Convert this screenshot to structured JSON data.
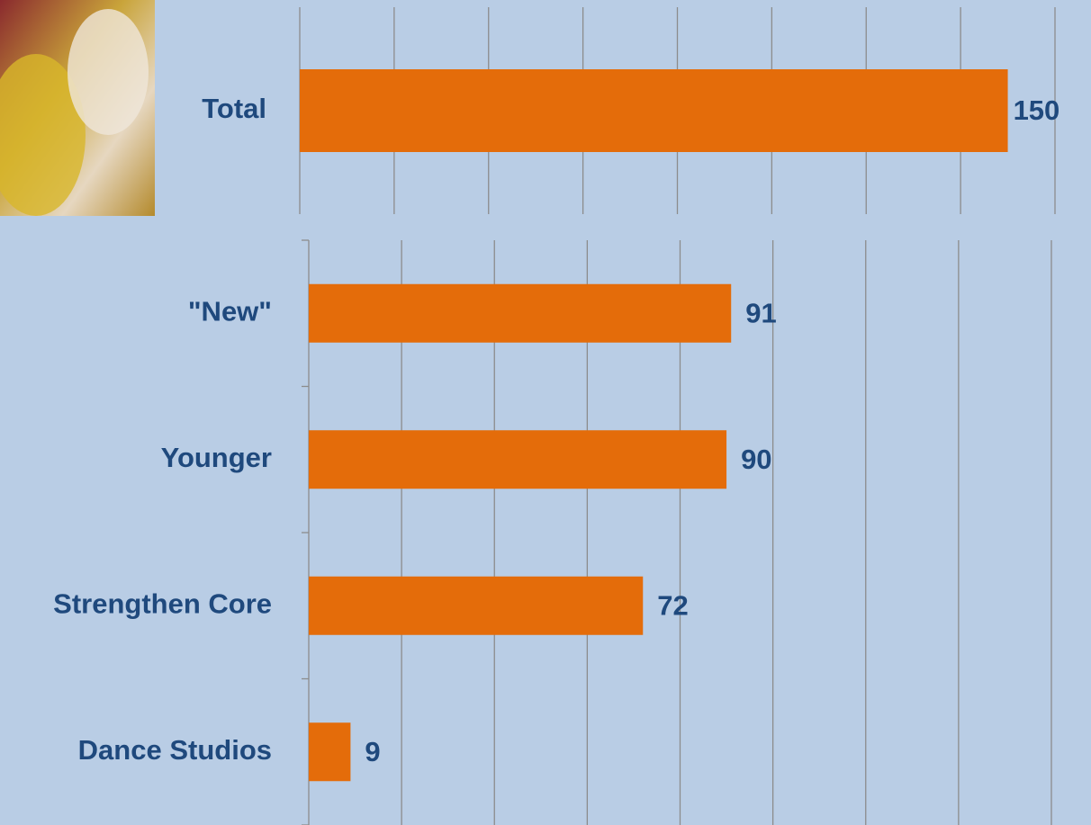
{
  "chart_data": [
    {
      "type": "bar",
      "orientation": "horizontal",
      "categories": [
        "Total"
      ],
      "values": [
        150
      ],
      "color": "#e46c0a",
      "xlim": [
        0,
        160
      ],
      "xticks": [
        0,
        20,
        40,
        60,
        80,
        100,
        120,
        140,
        160
      ],
      "grid": true
    },
    {
      "type": "bar",
      "orientation": "horizontal",
      "categories": [
        "\"New\"",
        "Younger",
        "Strengthen Core",
        "Dance Studios"
      ],
      "values": [
        91,
        90,
        72,
        9
      ],
      "color": "#e46c0a",
      "xlim": [
        0,
        160
      ],
      "xticks": [
        0,
        20,
        40,
        60,
        80,
        100,
        120,
        140,
        160
      ],
      "grid": true
    }
  ]
}
